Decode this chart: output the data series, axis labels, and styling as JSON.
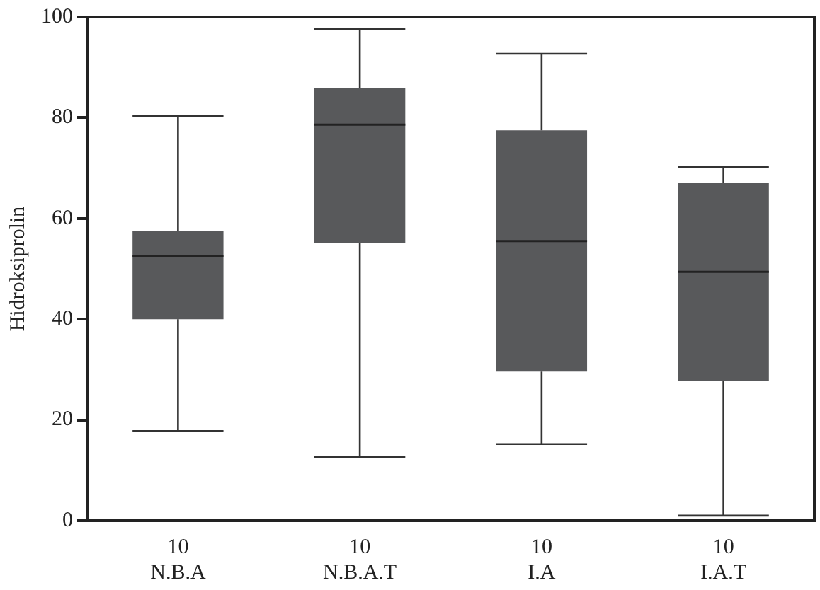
{
  "chart_data": {
    "type": "box",
    "ylabel": "Hidroksiprolin",
    "categories": [
      "10\nN.B.A",
      "10\nN.B.A.T",
      "10\nI.A",
      "10\nI.A.T"
    ],
    "color": "#58595b",
    "boxes": [
      {
        "low": 17.8,
        "q1": 40,
        "median": 52.6,
        "q3": 57.5,
        "high": 80.3
      },
      {
        "low": 12.7,
        "q1": 55.1,
        "median": 78.6,
        "q3": 85.9,
        "high": 97.6
      },
      {
        "low": 15.2,
        "q1": 29.6,
        "median": 55.5,
        "q3": 77.5,
        "high": 92.7
      },
      {
        "low": 1,
        "q1": 27.7,
        "median": 49.4,
        "q3": 67,
        "high": 70.2
      }
    ],
    "ylim": [
      0,
      100
    ],
    "yticks": [
      0,
      20,
      40,
      60,
      80,
      100
    ],
    "grid": false,
    "legend": false
  }
}
